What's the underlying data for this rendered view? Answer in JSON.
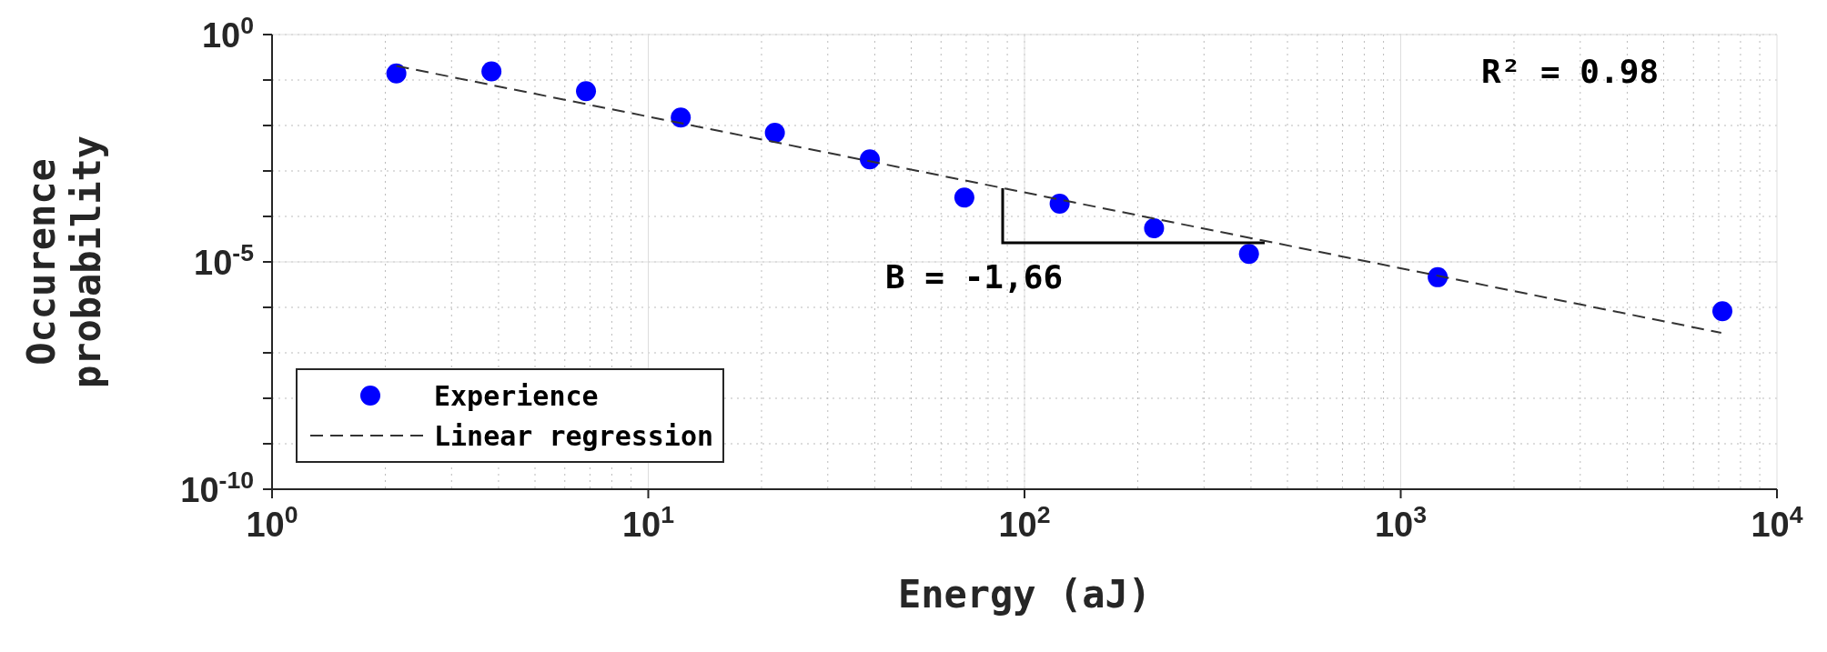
{
  "chart_data": {
    "type": "scatter",
    "xlabel": "Energy (aJ)",
    "ylabel": "Occurence probability",
    "log": "xy",
    "grid": true,
    "legend": "bottom left",
    "xlim": [
      1,
      10000
    ],
    "xticks": [
      {
        "value": 1,
        "label": "10$^{0}$"
      },
      {
        "value": 10,
        "label": "10$^{1}$"
      },
      {
        "value": 100,
        "label": "10$^{2}$"
      },
      {
        "value": 1000,
        "label": "10$^{3}$"
      },
      {
        "value": 10000,
        "label": "10$^{4}$"
      }
    ],
    "ylim": [
      1e-10,
      1
    ],
    "yticks": [
      {
        "value": 1,
        "label": "10$^{0}$"
      },
      {
        "value": 0.1,
        "label": null
      },
      {
        "value": 0.01,
        "label": null
      },
      {
        "value": 0.001,
        "label": null
      },
      {
        "value": 0.0001,
        "label": null
      },
      {
        "value": 1e-05,
        "label": "10$^{-5}$"
      },
      {
        "value": 1e-06,
        "label": null
      },
      {
        "value": 1e-07,
        "label": null
      },
      {
        "value": 1e-08,
        "label": null
      },
      {
        "value": 1e-09,
        "label": null
      },
      {
        "value": 1e-10,
        "label": "10$^{-10}$"
      }
    ],
    "annotations": [
      "R² = 0.98",
      "B = -1,66"
    ],
    "series": [
      {
        "name": "Experience",
        "marker": "circle",
        "color": "#0000ff",
        "x": [
          2.14,
          3.83,
          6.83,
          12.2,
          21.7,
          38.8,
          69.2,
          124,
          221,
          395,
          1254,
          7160
        ],
        "values": [
          0.14,
          0.155,
          0.057,
          0.015,
          0.0069,
          0.0018,
          0.00026,
          0.00019,
          5.5e-05,
          1.5e-05,
          4.6e-06,
          8.2e-07
        ]
      },
      {
        "name": "Linear regression",
        "type": "line",
        "line_style": "dashed",
        "color": "#333333",
        "x": [
          2.14,
          7110
        ],
        "values": [
          0.205,
          2.75e-07
        ]
      }
    ]
  }
}
